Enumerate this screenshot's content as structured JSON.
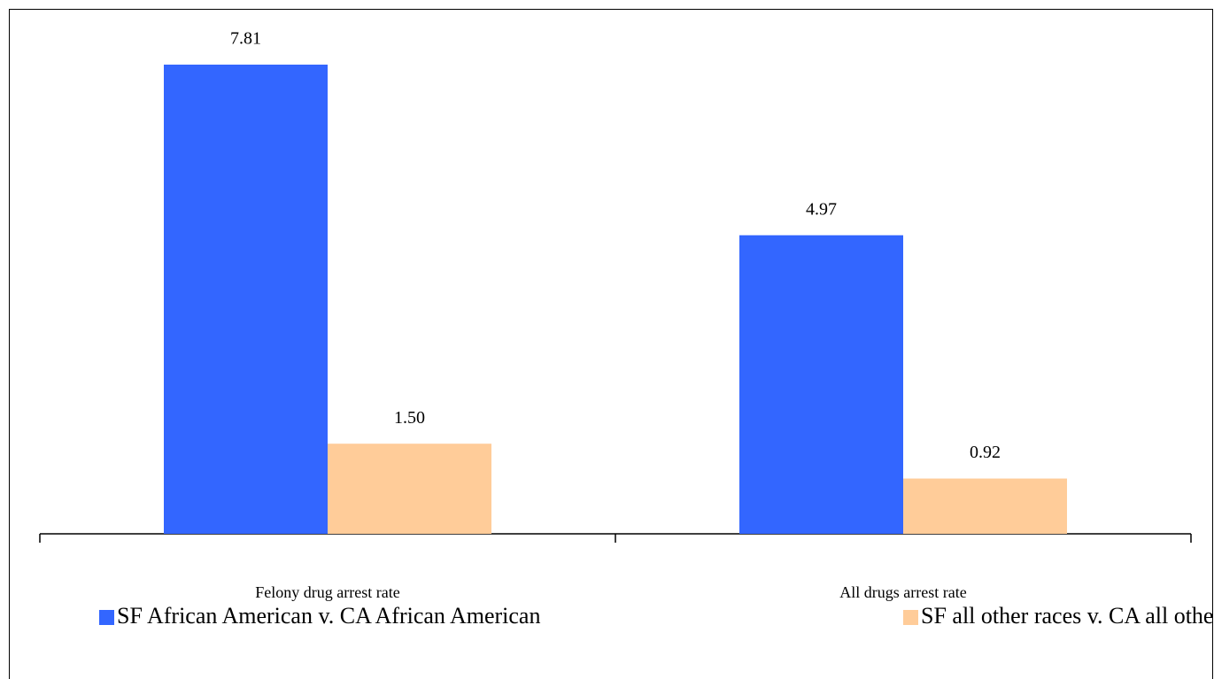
{
  "chart_data": {
    "type": "bar",
    "categories": [
      "Felony drug arrest rate",
      "All drugs arrest rate"
    ],
    "series": [
      {
        "name": "SF African American v. CA African American",
        "color": "#3366ff",
        "values": [
          7.81,
          4.97
        ],
        "value_labels": [
          "7.81",
          "4.97"
        ]
      },
      {
        "name": "SF all other races v. CA all other races",
        "color": "#ffcc99",
        "values": [
          1.5,
          0.92
        ],
        "value_labels": [
          "1.50",
          "0.92"
        ]
      }
    ],
    "legend": "bottom"
  }
}
